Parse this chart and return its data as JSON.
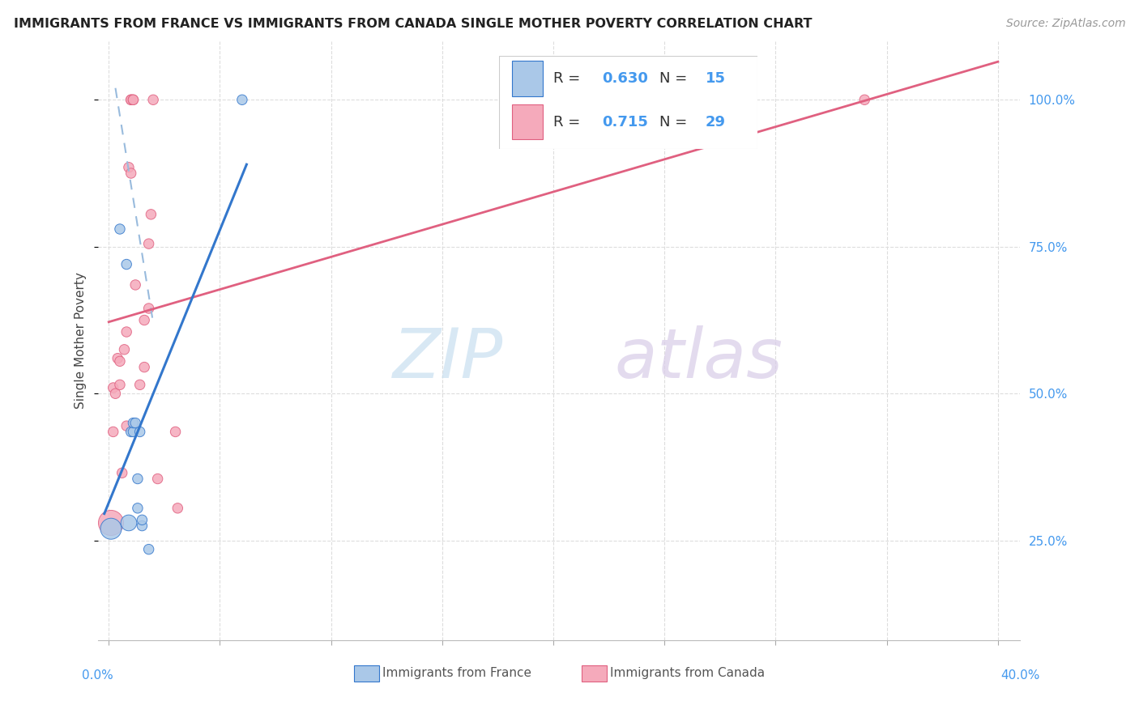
{
  "title": "IMMIGRANTS FROM FRANCE VS IMMIGRANTS FROM CANADA SINGLE MOTHER POVERTY CORRELATION CHART",
  "source": "Source: ZipAtlas.com",
  "ylabel": "Single Mother Poverty",
  "legend_label1": "Immigrants from France",
  "legend_label2": "Immigrants from Canada",
  "R_france": "0.630",
  "N_france": "15",
  "R_canada": "0.715",
  "N_canada": "29",
  "france_color": "#aac8e8",
  "canada_color": "#f5aabb",
  "france_line_color": "#3377cc",
  "france_dash_color": "#99bbdd",
  "canada_line_color": "#e06080",
  "france_x": [
    0.001,
    0.005,
    0.008,
    0.009,
    0.01,
    0.011,
    0.011,
    0.012,
    0.013,
    0.013,
    0.014,
    0.015,
    0.015,
    0.018,
    0.06
  ],
  "france_y": [
    0.27,
    0.78,
    0.72,
    0.28,
    0.435,
    0.435,
    0.45,
    0.45,
    0.305,
    0.355,
    0.435,
    0.275,
    0.285,
    0.235,
    1.0
  ],
  "canada_x": [
    0.001,
    0.002,
    0.002,
    0.003,
    0.004,
    0.005,
    0.005,
    0.006,
    0.007,
    0.008,
    0.008,
    0.009,
    0.01,
    0.01,
    0.01,
    0.011,
    0.011,
    0.012,
    0.014,
    0.016,
    0.016,
    0.018,
    0.018,
    0.019,
    0.02,
    0.022,
    0.03,
    0.031,
    0.34
  ],
  "canada_y": [
    0.28,
    0.51,
    0.435,
    0.5,
    0.56,
    0.515,
    0.555,
    0.365,
    0.575,
    0.445,
    0.605,
    0.885,
    0.875,
    1.0,
    1.0,
    1.0,
    1.0,
    0.685,
    0.515,
    0.545,
    0.625,
    0.645,
    0.755,
    0.805,
    1.0,
    0.355,
    0.435,
    0.305,
    1.0
  ],
  "france_sizes": [
    350,
    80,
    80,
    200,
    80,
    80,
    80,
    80,
    80,
    80,
    80,
    80,
    80,
    80,
    80
  ],
  "canada_sizes": [
    500,
    80,
    80,
    80,
    80,
    80,
    80,
    80,
    80,
    80,
    80,
    80,
    80,
    80,
    80,
    80,
    80,
    80,
    80,
    80,
    80,
    80,
    80,
    80,
    80,
    80,
    80,
    80,
    80
  ],
  "xlim": [
    -0.005,
    0.41
  ],
  "ylim": [
    0.08,
    1.1
  ],
  "right_yticks": [
    0.25,
    0.5,
    0.75,
    1.0
  ],
  "right_yticklabels": [
    "25.0%",
    "50.0%",
    "75.0%",
    "100.0%"
  ],
  "xticks": [
    0.0,
    0.05,
    0.1,
    0.15,
    0.2,
    0.25,
    0.3,
    0.35,
    0.4
  ],
  "grid_color": "#dddddd",
  "spine_color": "#bbbbbb",
  "tick_color": "#aaaaaa",
  "label_color": "#4499ee",
  "text_color": "#444444",
  "source_color": "#999999",
  "watermark_zip_color": "#c8dff0",
  "watermark_atlas_color": "#d8cce8"
}
